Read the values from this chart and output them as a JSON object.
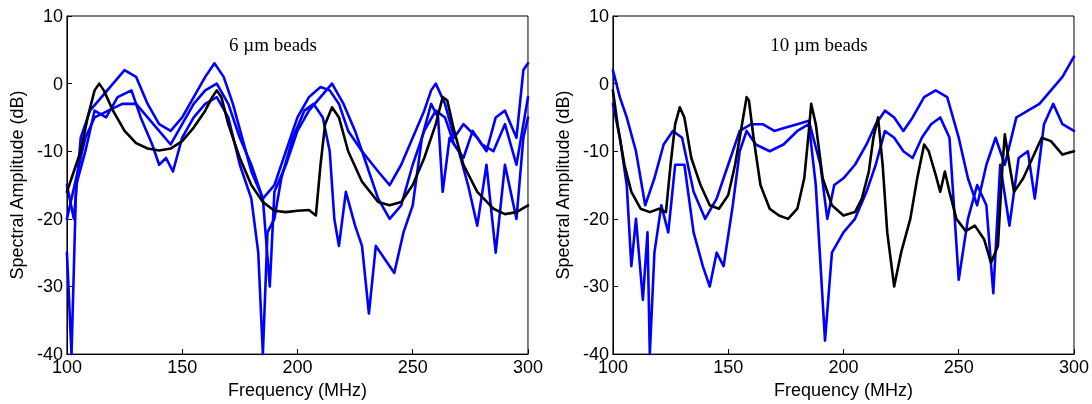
{
  "chart_data": [
    {
      "type": "line",
      "title": "6 µm beads",
      "xlabel": "Frequency (MHz)",
      "ylabel": "Spectral Amplitude (dB)",
      "xlim": [
        100,
        300
      ],
      "xticks": [
        100,
        150,
        200,
        250,
        300
      ],
      "ylim": [
        -40,
        10
      ],
      "yticks": [
        -40,
        -30,
        -20,
        -10,
        0,
        10
      ],
      "series": [
        {
          "color": "#0000ff",
          "x": [
            100,
            103,
            106,
            110,
            115,
            120,
            125,
            130,
            135,
            140,
            145,
            150,
            155,
            160,
            164,
            168,
            172,
            176,
            180,
            185,
            190,
            195,
            200,
            205,
            210,
            214,
            218,
            222,
            228,
            235,
            240,
            245,
            250,
            255,
            258,
            260,
            264,
            268,
            272,
            278,
            282,
            286,
            290,
            295,
            298,
            300
          ],
          "values": [
            -15,
            -20,
            -8,
            -4,
            -2,
            0,
            2,
            1,
            -3,
            -6,
            -7,
            -5,
            -2,
            1,
            3,
            1,
            -3,
            -8,
            -13,
            -17,
            -15,
            -10,
            -5,
            -2,
            -0.5,
            -1,
            -3,
            -7,
            -10,
            -13,
            -15,
            -12,
            -8,
            -4,
            -1,
            0,
            -3,
            -8,
            -6,
            -8,
            -10,
            -5,
            -4,
            -8,
            2,
            3
          ]
        },
        {
          "color": "#0000ff",
          "x": [
            100,
            102,
            104,
            108,
            112,
            117,
            122,
            128,
            132,
            137,
            140,
            143,
            146,
            150,
            155,
            160,
            165,
            170,
            175,
            180,
            183,
            185,
            187,
            190,
            193,
            198,
            203,
            207,
            211,
            214,
            216,
            218,
            221,
            225,
            228,
            231,
            234,
            238,
            242,
            246,
            250,
            254,
            258,
            261,
            263,
            266,
            270,
            274,
            278,
            282,
            286,
            290,
            295,
            298,
            300
          ],
          "values": [
            -25,
            -40,
            -15,
            -10,
            -4,
            -5,
            -2,
            -1,
            -5,
            -9,
            -12,
            -11,
            -13,
            -8,
            -5,
            -3,
            -2,
            -5,
            -12,
            -17,
            -25,
            -40,
            -22,
            -20,
            -14,
            -8,
            -4,
            -3,
            -5,
            -10,
            -20,
            -24,
            -16,
            -21,
            -24,
            -34,
            -24,
            -26,
            -28,
            -22,
            -18,
            -8,
            -3,
            -5,
            -16,
            -8,
            -10,
            -15,
            -21,
            -12,
            -25,
            -12,
            -20,
            -8,
            -5
          ]
        },
        {
          "color": "#0000ff",
          "x": [
            100,
            104,
            108,
            112,
            118,
            124,
            130,
            135,
            140,
            145,
            150,
            155,
            160,
            165,
            170,
            175,
            180,
            185,
            188,
            190,
            195,
            200,
            205,
            210,
            215,
            220,
            225,
            230,
            235,
            240,
            245,
            250,
            255,
            260,
            264,
            268,
            272,
            276,
            280,
            285,
            290,
            295,
            300
          ],
          "values": [
            -20,
            -14,
            -8,
            -5,
            -4,
            -3,
            -3,
            -5,
            -7,
            -9,
            -6,
            -3,
            -1,
            0,
            -3,
            -8,
            -12,
            -17,
            -30,
            -16,
            -12,
            -7,
            -4,
            -2,
            0,
            -3,
            -7,
            -12,
            -17,
            -20,
            -18,
            -12,
            -7,
            -4,
            -5,
            -9,
            -11,
            -7,
            -9,
            -10,
            -6,
            -12,
            -2
          ]
        },
        {
          "color": "#000000",
          "x": [
            100,
            103,
            106,
            109,
            112,
            114,
            116,
            120,
            125,
            130,
            135,
            140,
            145,
            150,
            155,
            160,
            163,
            165,
            167,
            170,
            175,
            180,
            185,
            190,
            195,
            200,
            205,
            208,
            210,
            212,
            215,
            218,
            222,
            228,
            235,
            240,
            245,
            250,
            255,
            260,
            263,
            265,
            268,
            272,
            278,
            285,
            290,
            295,
            300
          ],
          "values": [
            -16,
            -13,
            -10,
            -5,
            -1,
            0,
            -1,
            -4,
            -7,
            -8.8,
            -9.6,
            -9.9,
            -9.6,
            -8.5,
            -6.5,
            -4,
            -2,
            -1,
            -2,
            -6,
            -11,
            -15,
            -17.5,
            -18.8,
            -19,
            -18.8,
            -18.7,
            -19.5,
            -12,
            -6,
            -3.5,
            -5,
            -10,
            -14.5,
            -17.5,
            -18,
            -17.5,
            -15,
            -11,
            -6,
            -2,
            -2.5,
            -7,
            -12,
            -16,
            -18.5,
            -19.3,
            -19,
            -18
          ]
        }
      ]
    },
    {
      "type": "line",
      "title": "10 µm beads",
      "xlabel": "Frequency (MHz)",
      "ylabel": "Spectral Amplitude (dB)",
      "xlim": [
        100,
        300
      ],
      "xticks": [
        100,
        150,
        200,
        250,
        300
      ],
      "ylim": [
        -40,
        10
      ],
      "yticks": [
        -40,
        -30,
        -20,
        -10,
        0,
        10
      ],
      "series": [
        {
          "color": "#0000ff",
          "x": [
            100,
            103,
            106,
            110,
            114,
            118,
            122,
            126,
            130,
            135,
            140,
            145,
            150,
            155,
            160,
            165,
            170,
            175,
            180,
            185,
            190,
            193,
            196,
            200,
            205,
            210,
            214,
            218,
            222,
            226,
            230,
            235,
            240,
            245,
            250,
            254,
            258,
            262,
            266,
            270,
            275,
            280,
            285,
            290,
            295,
            300
          ],
          "values": [
            2,
            -2,
            -5,
            -10,
            -18,
            -14,
            -9,
            -7,
            -8,
            -16,
            -20,
            -17,
            -12,
            -7,
            -6,
            -6,
            -7,
            -6.5,
            -6,
            -5.5,
            -12,
            -20,
            -15,
            -14,
            -12,
            -9,
            -6,
            -4,
            -5,
            -7,
            -5,
            -2,
            -1,
            -2,
            -8,
            -14,
            -18,
            -12,
            -8,
            -12,
            -5,
            -4,
            -3,
            -1,
            1,
            4
          ]
        },
        {
          "color": "#0000ff",
          "x": [
            100,
            103,
            106,
            108,
            110,
            113,
            115,
            116,
            118,
            121,
            124,
            127,
            131,
            135,
            139,
            142,
            145,
            148,
            152,
            155,
            158,
            162,
            168,
            174,
            180,
            185,
            188,
            192,
            195,
            200,
            205,
            210,
            214,
            218,
            222,
            226,
            230,
            234,
            238,
            242,
            246,
            250,
            254,
            258,
            262,
            265,
            268,
            272,
            276,
            280,
            283,
            287,
            291,
            295,
            300
          ],
          "values": [
            -3,
            -8,
            -15,
            -27,
            -20,
            -32,
            -22,
            -40,
            -25,
            -18,
            -22,
            -12,
            -12,
            -22,
            -27,
            -30,
            -25,
            -27,
            -18,
            -10,
            -7,
            -9,
            -10,
            -9,
            -7,
            -6,
            -15,
            -38,
            -25,
            -22,
            -20,
            -16,
            -12,
            -7,
            -8,
            -10,
            -11,
            -8,
            -6,
            -5,
            -8,
            -29,
            -20,
            -15,
            -18,
            -31,
            -12,
            -21,
            -11,
            -10,
            -17,
            -6,
            -3,
            -6,
            -7
          ]
        },
        {
          "color": "#000000",
          "x": [
            100,
            102,
            105,
            108,
            112,
            116,
            120,
            123,
            125,
            127,
            129,
            131,
            134,
            138,
            142,
            146,
            150,
            153,
            156,
            158,
            159,
            161,
            164,
            168,
            172,
            176,
            180,
            183,
            185,
            186,
            188,
            191,
            195,
            200,
            205,
            208,
            211,
            213,
            215,
            217,
            219,
            222,
            225,
            229,
            232,
            235,
            237,
            240,
            242,
            244,
            246,
            249,
            253,
            257,
            261,
            264,
            267,
            269,
            270,
            272,
            274,
            278,
            282,
            286,
            290,
            295,
            300
          ],
          "values": [
            -1,
            -6,
            -12,
            -16,
            -18.5,
            -19,
            -18.5,
            -19,
            -12,
            -6,
            -3.5,
            -5,
            -11,
            -15,
            -18,
            -18.5,
            -16.5,
            -12,
            -6,
            -2,
            -2.5,
            -8,
            -15,
            -18.5,
            -19.5,
            -20,
            -18.5,
            -14,
            -7,
            -3,
            -6,
            -14,
            -18,
            -19.5,
            -19,
            -17,
            -13,
            -8,
            -5,
            -12,
            -22,
            -30,
            -25,
            -20,
            -14,
            -9,
            -10,
            -13.5,
            -16,
            -13,
            -16,
            -20,
            -21.8,
            -21,
            -23,
            -26.5,
            -24,
            -12,
            -7.5,
            -12,
            -16,
            -14,
            -11,
            -8,
            -8.5,
            -10.5,
            -10
          ]
        }
      ]
    }
  ]
}
